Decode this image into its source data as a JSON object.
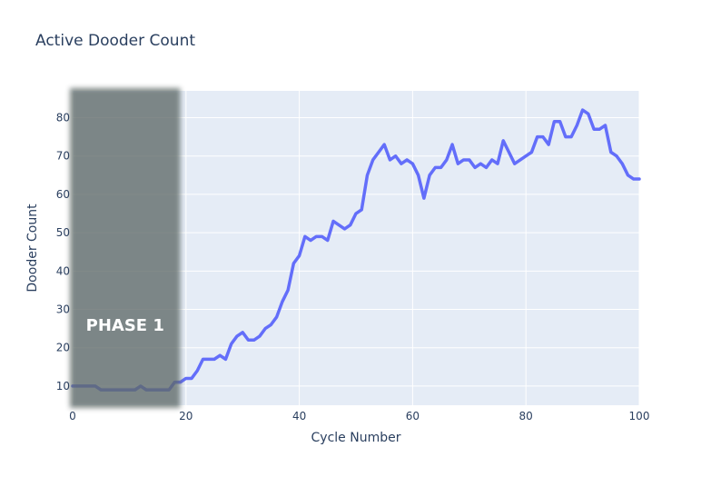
{
  "chart_data": {
    "type": "line",
    "title": "Active Dooder Count",
    "xlabel": "Cycle Number",
    "ylabel": "Dooder Count",
    "xlim": [
      0,
      100
    ],
    "ylim": [
      5,
      87
    ],
    "x_ticks": [
      0,
      20,
      40,
      60,
      80,
      100
    ],
    "y_ticks": [
      10,
      20,
      30,
      40,
      50,
      60,
      70,
      80
    ],
    "grid": true,
    "legend": "none",
    "series": [
      {
        "color": "#636efa",
        "x": [
          0,
          1,
          2,
          3,
          4,
          5,
          6,
          7,
          8,
          9,
          10,
          11,
          12,
          13,
          14,
          15,
          16,
          17,
          18,
          19,
          20,
          21,
          22,
          23,
          24,
          25,
          26,
          27,
          28,
          29,
          30,
          31,
          32,
          33,
          34,
          35,
          36,
          37,
          38,
          39,
          40,
          41,
          42,
          43,
          44,
          45,
          46,
          47,
          48,
          49,
          50,
          51,
          52,
          53,
          54,
          55,
          56,
          57,
          58,
          59,
          60,
          61,
          62,
          63,
          64,
          65,
          66,
          67,
          68,
          69,
          70,
          71,
          72,
          73,
          74,
          75,
          76,
          77,
          78,
          79,
          80,
          81,
          82,
          83,
          84,
          85,
          86,
          87,
          88,
          89,
          90,
          91,
          92,
          93,
          94,
          95,
          96,
          97,
          98,
          99,
          100
        ],
        "y": [
          10,
          10,
          10,
          10,
          10,
          9,
          9,
          9,
          9,
          9,
          9,
          9,
          10,
          9,
          9,
          9,
          9,
          9,
          11,
          11,
          12,
          12,
          14,
          17,
          17,
          17,
          18,
          17,
          21,
          23,
          24,
          22,
          22,
          23,
          25,
          26,
          28,
          32,
          35,
          42,
          44,
          49,
          48,
          49,
          49,
          48,
          53,
          52,
          51,
          52,
          55,
          56,
          65,
          69,
          71,
          73,
          69,
          70,
          68,
          69,
          68,
          65,
          59,
          65,
          67,
          67,
          69,
          73,
          68,
          69,
          69,
          67,
          68,
          67,
          69,
          68,
          74,
          71,
          68,
          69,
          70,
          71,
          75,
          75,
          73,
          79,
          79,
          75,
          75,
          78,
          82,
          81,
          77,
          77,
          78,
          71,
          70,
          68,
          65,
          64,
          64
        ]
      }
    ],
    "shaded_region": {
      "x_range": [
        0,
        19
      ],
      "label": "PHASE 1",
      "color": "#5f6a67"
    }
  }
}
